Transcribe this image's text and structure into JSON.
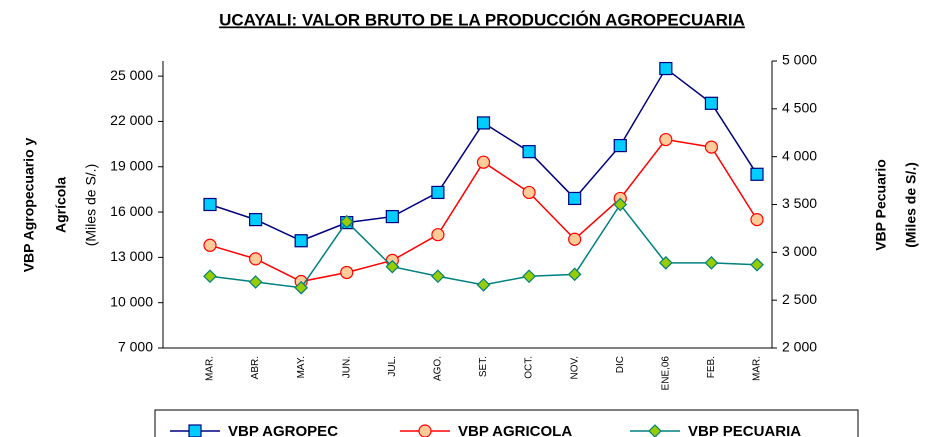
{
  "chart_data": {
    "type": "line",
    "title": "UCAYALI: VALOR BRUTO DE LA PRODUCCIÓN AGROPECUARIA",
    "ylabel": [
      "VBP Agropecuario y",
      "Agrícola"
    ],
    "ylabel_units": "(Miles de S/.)",
    "y2label": "VBP Pecuario",
    "y2label_units": "(Miles de S/.)",
    "categories": [
      "MAR.",
      "ABR.",
      "MAY.",
      "JUN.",
      "JUL.",
      "AGO.",
      "SET.",
      "OCT.",
      "NOV.",
      "DIC",
      "ENE,06",
      "FEB.",
      "MAR."
    ],
    "series": [
      {
        "name": "VBP AGROPEC",
        "color": "#000080",
        "marker_fill": "#00ccff",
        "marker": "square",
        "values": [
          16500,
          15500,
          14100,
          15300,
          15700,
          17300,
          21900,
          20000,
          16900,
          20400,
          25500,
          23200,
          18500
        ]
      },
      {
        "name": "VBP AGRICOLA",
        "color": "#ff0000",
        "marker_fill": "#ffcc99",
        "marker": "circle",
        "values": [
          13800,
          12900,
          11400,
          12000,
          12800,
          14500,
          19300,
          17300,
          14200,
          16900,
          20800,
          20300,
          15500
        ]
      },
      {
        "name": "VBP PECUARIA",
        "color": "#008080",
        "marker_fill": "#99cc00",
        "marker": "diamond",
        "axis": "y2",
        "values": [
          2750,
          2690,
          2630,
          3320,
          2850,
          2750,
          2660,
          2750,
          2770,
          3500,
          2890,
          2890,
          2870
        ]
      }
    ],
    "ylim": [
      7000,
      26000
    ],
    "yticks": [
      {
        "value": 7000,
        "label": "7 000"
      },
      {
        "value": 10000,
        "label": "10 000"
      },
      {
        "value": 13000,
        "label": "13 000"
      },
      {
        "value": 16000,
        "label": "16 000"
      },
      {
        "value": 19000,
        "label": "19 000"
      },
      {
        "value": 22000,
        "label": "22 000"
      },
      {
        "value": 25000,
        "label": "25 000"
      }
    ],
    "y2lim": [
      2000,
      5000
    ],
    "y2ticks": [
      {
        "value": 2000,
        "label": "2 000"
      },
      {
        "value": 2500,
        "label": "2 500"
      },
      {
        "value": 3000,
        "label": "3 000"
      },
      {
        "value": 3500,
        "label": "3 500"
      },
      {
        "value": 4000,
        "label": "4 000"
      },
      {
        "value": 4500,
        "label": "4 500"
      },
      {
        "value": 5000,
        "label": "5 000"
      }
    ],
    "grid": false,
    "legend": "bottom"
  }
}
